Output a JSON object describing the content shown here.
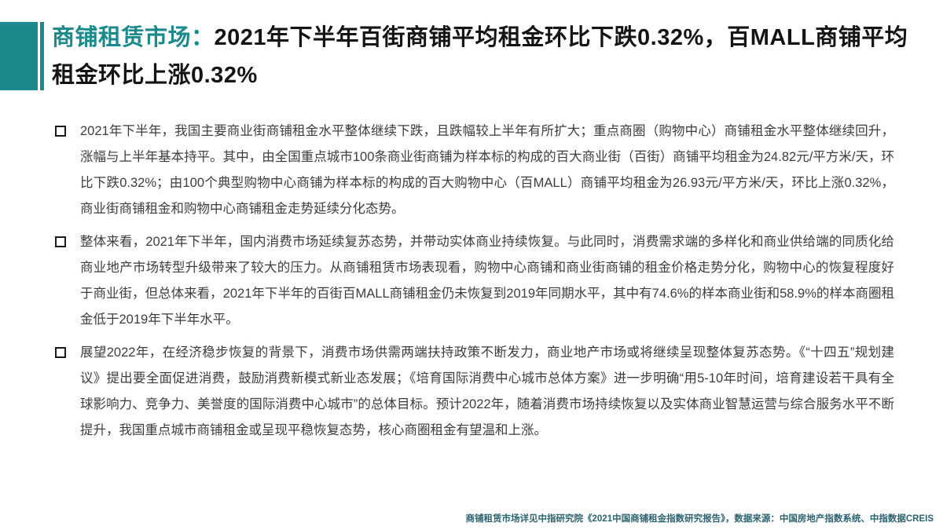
{
  "slide": {
    "accent_color": "#1B8A8C",
    "title": {
      "prefix": "商铺租赁市场：",
      "main": "2021年下半年百街商铺平均租金环比下跌0.32%，百MALL商铺平均租金环比上涨0.32%"
    },
    "bullets": [
      {
        "text": "2021年下半年，我国主要商业街商铺租金水平整体继续下跌，且跌幅较上半年有所扩大；重点商圈（购物中心）商铺租金水平整体继续回升，涨幅与上半年基本持平。其中，由全国重点城市100条商业街商铺为样本标的构成的百大商业街（百街）商铺平均租金为24.82元/平方米/天，环比下跌0.32%；由100个典型购物中心商铺为样本标的构成的百大购物中心（百MALL）商铺平均租金为26.93元/平方米/天，环比上涨0.32%，商业街商铺租金和购物中心商铺租金走势延续分化态势。"
      },
      {
        "text": "整体来看，2021年下半年，国内消费市场延续复苏态势，并带动实体商业持续恢复。与此同时，消费需求端的多样化和商业供给端的同质化给商业地产市场转型升级带来了较大的压力。从商铺租赁市场表现看，购物中心商铺和商业街商铺的租金价格走势分化，购物中心的恢复程度好于商业街，但总体来看，2021年下半年的百街百MALL商铺租金仍未恢复到2019年同期水平，其中有74.6%的样本商业街和58.9%的样本商圈租金低于2019年下半年水平。"
      },
      {
        "text": "展望2022年，在经济稳步恢复的背景下，消费市场供需两端扶持政策不断发力，商业地产市场或将继续呈现整体复苏态势。《“十四五”规划建议》提出要全面促进消费，鼓励消费新模式新业态发展；《培育国际消费中心城市总体方案》进一步明确“用5-10年时间，培育建设若干具有全球影响力、竞争力、美誉度的国际消费中心城市”的总体目标。预计2022年，随着消费市场持续恢复以及实体商业智慧运营与综合服务水平不断提升，我国重点城市商铺租金或呈现平稳恢复态势，核心商圈租金有望温和上涨。"
      }
    ],
    "footer": "商铺租赁市场详见中指研究院《2021中国商铺租金指数研究报告》，数据来源：中国房地产指数系统、中指数据CREIS"
  }
}
